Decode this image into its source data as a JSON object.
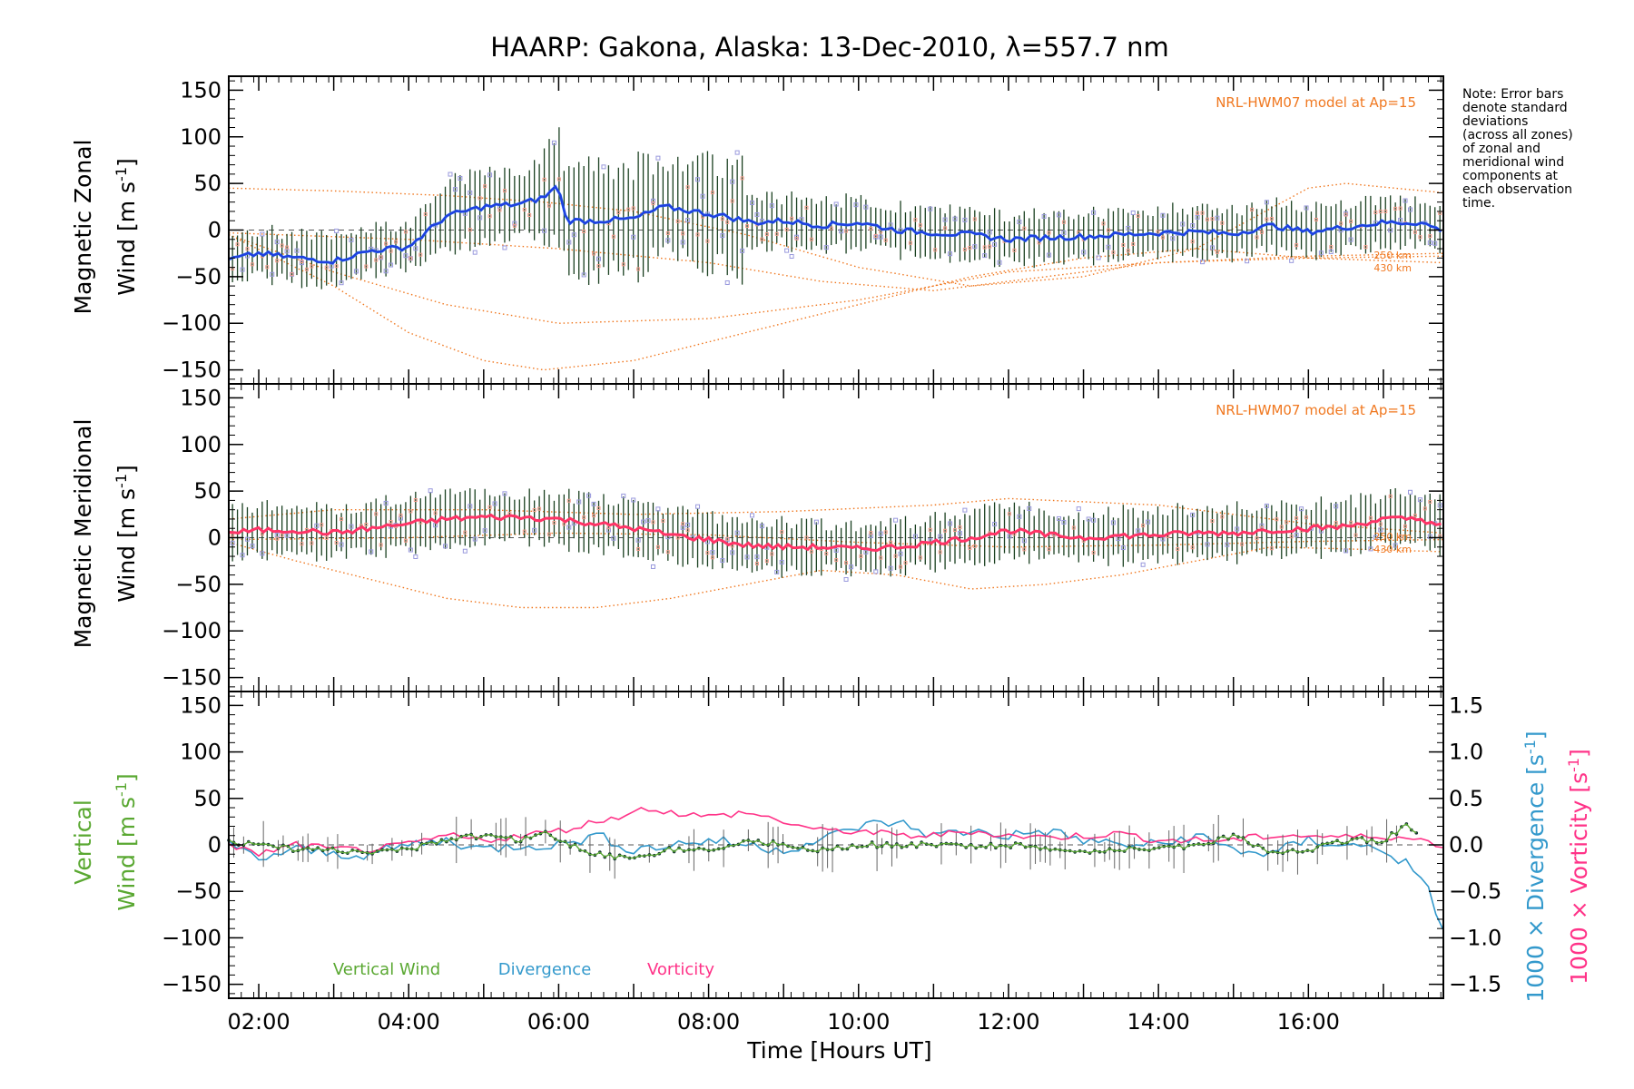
{
  "figure": {
    "title": "HAARP: Gakona,  Alaska: 13-Dec-2010, λ=557.7 nm",
    "note_lines": [
      "Note: Error bars",
      "denote standard",
      "deviations",
      "(across all zones)",
      "of zonal and",
      "meridional wind",
      "components at",
      "each observation",
      "time."
    ],
    "xlabel": "Time [Hours UT]",
    "colors": {
      "zonal": "#1f3fe0",
      "zonal_light": "#3c8ff0",
      "meridional": "#ff3366",
      "model": "#f07820",
      "scatter": "#9999dd",
      "error": "#1a4020",
      "vertical": "#5aa832",
      "divergence": "#3399cc",
      "vorticity": "#ff3388",
      "vert_points": "#103030",
      "vert_err": "#666666"
    }
  },
  "chart_data": [
    {
      "type": "line",
      "name": "zonal",
      "ylabel_line1": "Magnetic Zonal",
      "ylabel_line2": "Wind [m s",
      "ylabel_sup": "-1",
      "ylabel_end": "]",
      "model_label": "NRL-HWM07 model at Ap=15",
      "model_alt_labels": [
        "250 km",
        "430 km"
      ],
      "xlim": [
        1.6,
        17.8
      ],
      "ylim": [
        -165,
        165
      ],
      "yticks": [
        150,
        100,
        50,
        0,
        -50,
        -100,
        -150
      ],
      "yticklabels": [
        "150",
        "100",
        "50",
        "0",
        "−50",
        "−100",
        "−150"
      ],
      "series": [
        {
          "x": [
            1.6,
            2.0,
            2.5,
            3.0,
            3.5,
            4.0,
            4.5,
            5.0,
            5.5,
            5.8,
            6.0,
            6.1,
            6.5,
            7.0,
            7.4,
            7.8,
            8.2,
            8.6,
            9.0,
            9.5,
            10.0,
            10.5,
            11.0,
            11.5,
            12.0,
            12.5,
            13.0,
            13.5,
            14.0,
            14.5,
            15.0,
            15.5,
            16.0,
            16.5,
            17.0,
            17.5,
            17.8
          ],
          "y": [
            -32,
            -25,
            -30,
            -33,
            -22,
            -18,
            15,
            25,
            28,
            35,
            48,
            10,
            10,
            12,
            25,
            20,
            15,
            8,
            10,
            5,
            8,
            0,
            -3,
            -5,
            -10,
            -8,
            -7,
            -5,
            -3,
            -2,
            -4,
            5,
            -2,
            3,
            8,
            8,
            -1
          ]
        }
      ],
      "model_curves": [
        {
          "x": [
            1.6,
            3,
            4.5,
            5.8,
            7,
            8.5,
            10,
            11.5,
            13,
            14.5,
            16,
            16.5,
            17.8
          ],
          "y": [
            45,
            42,
            37,
            30,
            20,
            -5,
            -40,
            -60,
            -50,
            -20,
            45,
            50,
            40
          ]
        },
        {
          "x": [
            1.6,
            3,
            4,
            5,
            5.8,
            7,
            8.5,
            10,
            11.5,
            13,
            14.5,
            16,
            17.8
          ],
          "y": [
            -5,
            -60,
            -110,
            -140,
            -150,
            -140,
            -110,
            -80,
            -50,
            -30,
            -20,
            -30,
            -35
          ]
        },
        {
          "x": [
            1.6,
            3,
            4.5,
            6,
            8,
            10,
            11,
            12,
            14,
            16,
            17.8
          ],
          "y": [
            -5,
            -45,
            -80,
            -100,
            -95,
            -75,
            -60,
            -45,
            -35,
            -30,
            -28
          ]
        },
        {
          "x": [
            1.6,
            4,
            6,
            8,
            9.5,
            11,
            12.5,
            14,
            16,
            17.8
          ],
          "y": [
            -3,
            -10,
            -20,
            -35,
            -55,
            -65,
            -50,
            -35,
            -28,
            -25
          ]
        }
      ]
    },
    {
      "type": "line",
      "name": "meridional",
      "ylabel_line1": "Magnetic Meridional",
      "ylabel_line2": "Wind [m s",
      "ylabel_sup": "-1",
      "ylabel_end": "]",
      "model_label": "NRL-HWM07 model at Ap=15",
      "model_alt_labels": [
        "250 km",
        "430 km"
      ],
      "xlim": [
        1.6,
        17.8
      ],
      "ylim": [
        -165,
        165
      ],
      "yticks": [
        150,
        100,
        50,
        0,
        -50,
        -100,
        -150
      ],
      "yticklabels": [
        "150",
        "100",
        "50",
        "0",
        "−50",
        "−100",
        "−150"
      ],
      "series": [
        {
          "x": [
            1.6,
            2.0,
            2.5,
            3.0,
            3.5,
            4.0,
            4.5,
            5.0,
            5.5,
            6.0,
            6.5,
            7.0,
            7.5,
            8.0,
            8.5,
            9.0,
            9.5,
            10.0,
            10.5,
            11.0,
            11.5,
            12.0,
            12.5,
            13.0,
            13.5,
            14.0,
            14.5,
            15.0,
            15.5,
            16.0,
            16.5,
            17.0,
            17.5,
            17.8
          ],
          "y": [
            5,
            8,
            8,
            5,
            10,
            15,
            20,
            22,
            22,
            20,
            15,
            10,
            3,
            -2,
            -8,
            -10,
            -10,
            -12,
            -10,
            -5,
            0,
            8,
            3,
            0,
            2,
            3,
            5,
            5,
            8,
            10,
            12,
            20,
            20,
            12
          ]
        }
      ],
      "model_curves": [
        {
          "x": [
            1.6,
            2.5,
            3.5,
            4.5,
            5.5,
            6.5,
            7.5,
            8.5,
            9.5,
            10.5,
            11.5,
            12.5,
            13.5,
            14.5,
            15.5,
            16.5,
            17.8
          ],
          "y": [
            -5,
            -25,
            -45,
            -65,
            -75,
            -75,
            -65,
            -50,
            -35,
            -40,
            -55,
            -50,
            -40,
            -25,
            -10,
            -12,
            -15
          ]
        },
        {
          "x": [
            1.6,
            3,
            5,
            7,
            9,
            11,
            12,
            14,
            16,
            17.8
          ],
          "y": [
            20,
            30,
            30,
            25,
            28,
            35,
            42,
            35,
            15,
            5
          ]
        },
        {
          "x": [
            1.6,
            4,
            6,
            8,
            10,
            12,
            14,
            16,
            17.8
          ],
          "y": [
            -2,
            0,
            5,
            3,
            -5,
            -10,
            -8,
            -4,
            -2
          ]
        }
      ]
    },
    {
      "type": "line",
      "name": "vertical",
      "ylabel_line1": "Vertical",
      "ylabel_line2": "Wind [m s",
      "ylabel_sup": "-1",
      "ylabel_end": "]",
      "right_label_div": "1000 × Divergence [s",
      "right_label_vor": "1000 × Vorticity [s",
      "right_label_sup": "-1",
      "right_label_end": "]",
      "xlim": [
        1.6,
        17.8
      ],
      "ylim": [
        -165,
        165
      ],
      "yticks": [
        150,
        100,
        50,
        0,
        -50,
        -100,
        -150
      ],
      "yticklabels": [
        "150",
        "100",
        "50",
        "0",
        "−50",
        "−100",
        "−150"
      ],
      "y2lim": [
        -1.65,
        1.65
      ],
      "y2ticks": [
        1.5,
        1.0,
        0.5,
        0.0,
        -0.5,
        -1.0,
        -1.5
      ],
      "y2ticklabels": [
        "1.5",
        "1.0",
        "0.5",
        "0.0",
        "−0.5",
        "−1.0",
        "−1.5"
      ],
      "legend": [
        "Vertical Wind",
        "Divergence",
        "Vorticity"
      ],
      "series": [
        {
          "name": "Vertical Wind",
          "x": [
            1.6,
            2.0,
            2.5,
            3.0,
            3.5,
            4.0,
            4.5,
            5.0,
            5.5,
            5.8,
            6.0,
            6.5,
            7.0,
            7.5,
            8.0,
            8.5,
            9.0,
            9.5,
            10.0,
            10.5,
            11.0,
            11.5,
            12.0,
            12.5,
            13.0,
            13.5,
            14.0,
            14.5,
            15.0,
            15.5,
            16.0,
            16.5,
            17.0,
            17.3,
            17.5
          ],
          "y": [
            3,
            0,
            -5,
            -5,
            -8,
            -5,
            5,
            10,
            5,
            15,
            5,
            -10,
            -15,
            -5,
            -5,
            5,
            0,
            -5,
            0,
            0,
            0,
            -2,
            0,
            -5,
            -10,
            -5,
            -5,
            0,
            10,
            -8,
            -5,
            5,
            5,
            20,
            10
          ]
        },
        {
          "name": "Divergence",
          "x": [
            1.6,
            2.0,
            2.5,
            3.0,
            3.5,
            4.0,
            4.5,
            5.0,
            5.5,
            6.0,
            6.5,
            7.0,
            7.5,
            8.0,
            8.5,
            9.0,
            9.5,
            10.0,
            10.5,
            11.0,
            11.5,
            12.0,
            12.5,
            13.0,
            13.5,
            14.0,
            14.5,
            15.0,
            15.5,
            16.0,
            16.5,
            17.0,
            17.3,
            17.6,
            17.8
          ],
          "y": [
            0.0,
            -0.15,
            -0.05,
            -0.1,
            -0.1,
            0.0,
            0.05,
            -0.05,
            0.0,
            0.0,
            0.1,
            -0.05,
            0.0,
            0.05,
            0.0,
            -0.05,
            0.05,
            0.2,
            0.25,
            0.1,
            0.15,
            0.1,
            0.15,
            0.05,
            0.0,
            0.0,
            0.1,
            -0.05,
            -0.1,
            0.05,
            0.0,
            -0.05,
            -0.2,
            -0.5,
            -0.9
          ]
        },
        {
          "name": "Vorticity",
          "x": [
            1.6,
            2.0,
            2.5,
            3.0,
            3.5,
            4.0,
            4.5,
            5.0,
            5.5,
            6.0,
            6.5,
            7.0,
            7.2,
            7.5,
            8.0,
            8.5,
            9.0,
            9.5,
            10.0,
            10.5,
            11.0,
            11.5,
            12.0,
            12.5,
            13.0,
            13.5,
            14.0,
            14.5,
            15.0,
            15.5,
            16.0,
            16.5,
            17.0,
            17.5,
            17.8
          ],
          "y": [
            0.0,
            -0.1,
            0.0,
            -0.05,
            -0.05,
            0.0,
            0.1,
            0.05,
            0.1,
            0.15,
            0.25,
            0.35,
            0.4,
            0.35,
            0.3,
            0.35,
            0.25,
            0.15,
            0.15,
            0.1,
            0.1,
            0.15,
            0.1,
            0.08,
            0.1,
            0.12,
            0.05,
            0.05,
            0.05,
            0.1,
            0.1,
            0.08,
            0.1,
            0.05,
            0.0
          ]
        }
      ]
    }
  ],
  "xaxis": {
    "ticks": [
      2,
      4,
      6,
      8,
      10,
      12,
      14,
      16
    ],
    "ticklabels": [
      "02:00",
      "04:00",
      "06:00",
      "08:00",
      "10:00",
      "12:00",
      "14:00",
      "16:00"
    ]
  }
}
